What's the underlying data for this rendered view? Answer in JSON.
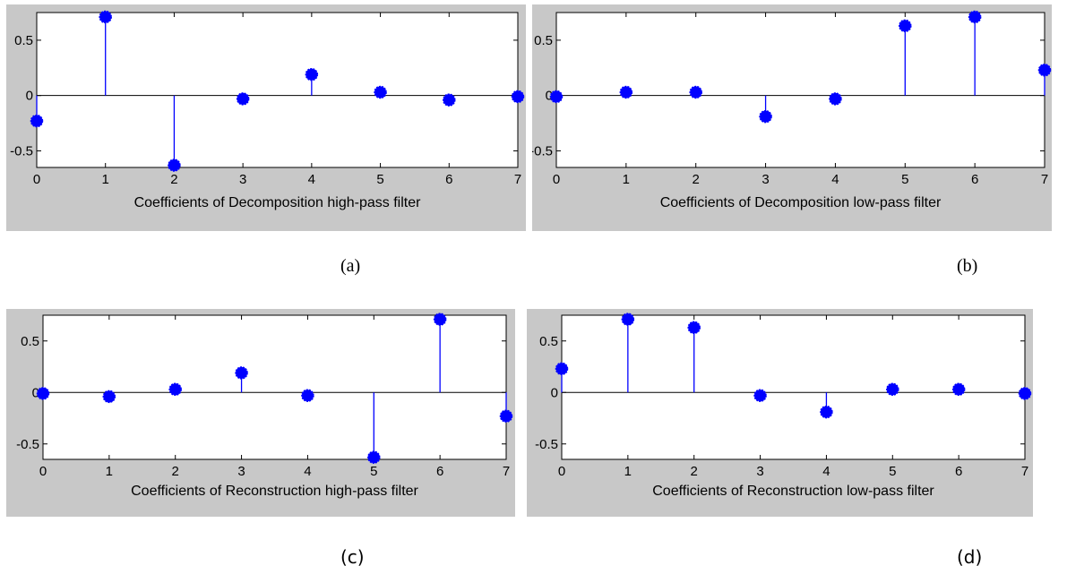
{
  "chart_data": [
    {
      "type": "stem",
      "caption": "(a)",
      "xlabel": "Coefficients of Decomposition high-pass filter",
      "x": [
        0,
        1,
        2,
        3,
        4,
        5,
        6,
        7
      ],
      "values": [
        -0.23,
        0.71,
        -0.63,
        -0.03,
        0.19,
        0.03,
        -0.04,
        -0.01
      ],
      "xlim": [
        0,
        7
      ],
      "ylim": [
        -0.65,
        0.75
      ],
      "xticks": [
        "0",
        "1",
        "2",
        "3",
        "4",
        "5",
        "6",
        "7"
      ],
      "yticks": [
        {
          "v": 0.5,
          "label": "0.5"
        },
        {
          "v": 0,
          "label": "0"
        },
        {
          "v": -0.5,
          "label": "-0.5"
        }
      ],
      "color": "#0000ff",
      "background": "#c8c8c8",
      "grid": false
    },
    {
      "type": "stem",
      "caption": "(b)",
      "xlabel": "Coefficients of  Decomposition low-pass filter",
      "x": [
        0,
        1,
        2,
        3,
        4,
        5,
        6,
        7
      ],
      "values": [
        -0.01,
        0.03,
        0.03,
        -0.19,
        -0.03,
        0.63,
        0.71,
        0.23
      ],
      "xlim": [
        0,
        7
      ],
      "ylim": [
        -0.65,
        0.75
      ],
      "xticks": [
        "0",
        "1",
        "2",
        "3",
        "4",
        "5",
        "6",
        "7"
      ],
      "yticks": [
        {
          "v": 0.5,
          "label": "0.5"
        },
        {
          "v": 0,
          "label": "0"
        },
        {
          "v": -0.5,
          "label": "-0.5"
        }
      ],
      "color": "#0000ff",
      "background": "#c8c8c8",
      "grid": false
    },
    {
      "type": "stem",
      "caption": "(c)",
      "xlabel": "Coefficients of Reconstruction high-pass filter",
      "x": [
        0,
        1,
        2,
        3,
        4,
        5,
        6,
        7
      ],
      "values": [
        -0.01,
        -0.04,
        0.03,
        0.19,
        -0.03,
        -0.63,
        0.71,
        -0.23
      ],
      "xlim": [
        0,
        7
      ],
      "ylim": [
        -0.65,
        0.75
      ],
      "xticks": [
        "0",
        "1",
        "2",
        "3",
        "4",
        "5",
        "6",
        "7"
      ],
      "yticks": [
        {
          "v": 0.5,
          "label": "0.5"
        },
        {
          "v": 0,
          "label": "0"
        },
        {
          "v": -0.5,
          "label": "-0.5"
        }
      ],
      "color": "#0000ff",
      "background": "#c8c8c8",
      "grid": false
    },
    {
      "type": "stem",
      "caption": "(d)",
      "xlabel": "Coefficients of Reconstruction low-pass filter",
      "x": [
        0,
        1,
        2,
        3,
        4,
        5,
        6,
        7
      ],
      "values": [
        0.23,
        0.71,
        0.63,
        -0.03,
        -0.19,
        0.03,
        0.03,
        -0.01
      ],
      "xlim": [
        0,
        7
      ],
      "ylim": [
        -0.65,
        0.75
      ],
      "xticks": [
        "0",
        "1",
        "2",
        "3",
        "4",
        "5",
        "6",
        "7"
      ],
      "yticks": [
        {
          "v": 0.5,
          "label": "0.5"
        },
        {
          "v": 0,
          "label": "0"
        },
        {
          "v": -0.5,
          "label": "-0.5"
        }
      ],
      "color": "#0000ff",
      "background": "#c8c8c8",
      "grid": false
    }
  ]
}
